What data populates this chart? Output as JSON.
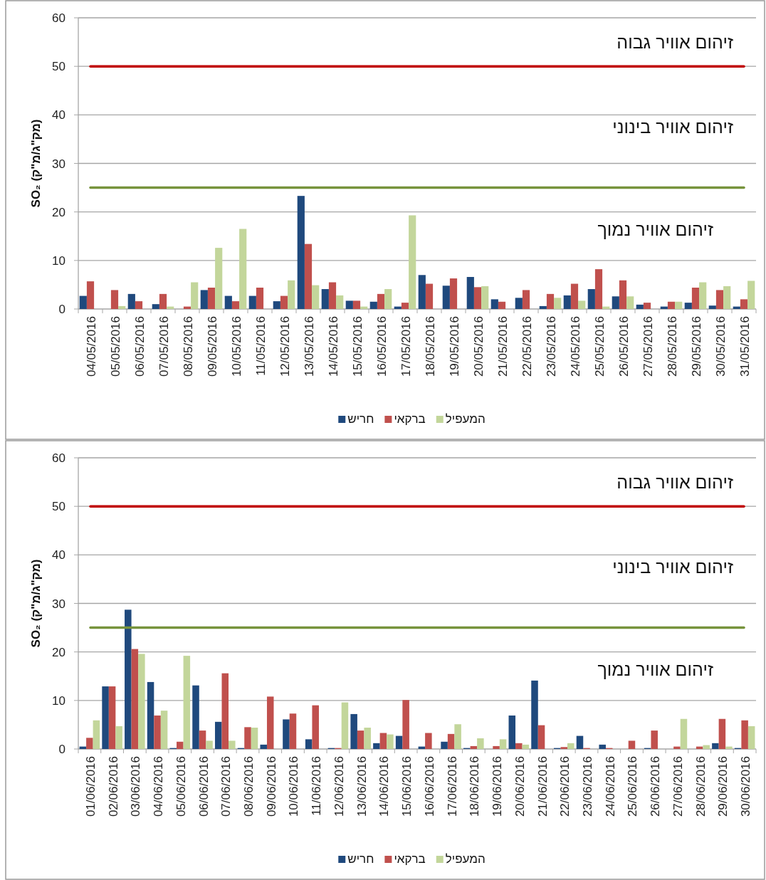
{
  "chart_data": [
    {
      "type": "bar",
      "ylabel": "SO₂ (מק\"ג/מ\"ק)",
      "categories": [
        "04/05/2016",
        "05/05/2016",
        "06/05/2016",
        "07/05/2016",
        "08/05/2016",
        "09/05/2016",
        "10/05/2016",
        "11/05/2016",
        "12/05/2016",
        "13/05/2016",
        "14/05/2016",
        "15/05/2016",
        "16/05/2016",
        "17/05/2016",
        "18/05/2016",
        "19/05/2016",
        "20/05/2016",
        "21/05/2016",
        "22/05/2016",
        "23/05/2016",
        "24/05/2016",
        "25/05/2016",
        "26/05/2016",
        "27/05/2016",
        "28/05/2016",
        "29/05/2016",
        "30/05/2016",
        "31/05/2016"
      ],
      "series": [
        {
          "name": "חריש",
          "color": "#1f497d",
          "values": [
            2.7,
            0,
            3.1,
            1.0,
            0,
            3.9,
            2.7,
            2.7,
            1.6,
            23.3,
            4.1,
            1.7,
            1.5,
            0.5,
            7.0,
            4.8,
            6.6,
            2.0,
            2.3,
            0.6,
            2.8,
            4.1,
            2.6,
            0.9,
            0.5,
            1.3,
            0.7,
            0.5
          ]
        },
        {
          "name": "ברקאי",
          "color": "#c0504d",
          "values": [
            5.7,
            3.9,
            1.6,
            3.1,
            0.5,
            4.4,
            1.6,
            4.4,
            2.7,
            13.4,
            5.5,
            1.7,
            3.1,
            1.3,
            5.2,
            6.3,
            4.5,
            1.5,
            3.9,
            3.1,
            5.2,
            8.2,
            5.9,
            1.3,
            1.5,
            4.4,
            3.9,
            2.0
          ]
        },
        {
          "name": "המעפיל",
          "color": "#c3d69b",
          "values": [
            0,
            0.6,
            0,
            0.5,
            5.5,
            12.6,
            16.5,
            0,
            5.9,
            4.9,
            2.8,
            0.5,
            4.1,
            19.3,
            0,
            0,
            4.7,
            0,
            0,
            2.3,
            1.7,
            0.5,
            2.6,
            null,
            1.5,
            5.5,
            4.7,
            5.8
          ]
        }
      ],
      "ylim": [
        0,
        60
      ],
      "yticks": [
        0,
        10,
        20,
        30,
        40,
        50,
        60
      ],
      "grid": "y",
      "legend": "bottom",
      "ref_lines": [
        {
          "axis": "y",
          "value": 50,
          "label": "זיהום אוויר גבוה",
          "color": "#c00000"
        },
        {
          "axis": "y",
          "value": 25,
          "label": "זיהום אוויר בינוני",
          "color": "#77933c"
        }
      ],
      "annotations": [
        "זיהום אוויר נמוך"
      ]
    },
    {
      "type": "bar",
      "ylabel": "SO₂ (מק\"ג/מ\"ק)",
      "categories": [
        "01/06/2016",
        "02/06/2016",
        "03/06/2016",
        "04/06/2016",
        "05/06/2016",
        "06/06/2016",
        "07/06/2016",
        "08/06/2016",
        "09/06/2016",
        "10/06/2016",
        "11/06/2016",
        "12/06/2016",
        "13/06/2016",
        "14/06/2016",
        "15/06/2016",
        "16/06/2016",
        "17/06/2016",
        "18/06/2016",
        "19/06/2016",
        "20/06/2016",
        "21/06/2016",
        "22/06/2016",
        "23/06/2016",
        "24/06/2016",
        "25/06/2016",
        "26/06/2016",
        "27/06/2016",
        "28/06/2016",
        "29/06/2016",
        "30/06/2016"
      ],
      "series": [
        {
          "name": "חריש",
          "color": "#1f497d",
          "values": [
            0.5,
            12.9,
            28.7,
            13.8,
            0.2,
            13.1,
            5.6,
            0.2,
            0.9,
            6.1,
            2.0,
            0.2,
            7.2,
            1.2,
            2.7,
            0.5,
            1.5,
            0.2,
            0,
            6.9,
            14.1,
            0.2,
            2.7,
            0.9,
            0,
            0.2,
            0,
            0,
            1.2,
            0.2
          ]
        },
        {
          "name": "ברקאי",
          "color": "#c0504d",
          "values": [
            2.3,
            12.9,
            20.6,
            6.9,
            1.5,
            3.8,
            15.6,
            4.5,
            10.8,
            7.3,
            9.0,
            0.2,
            3.8,
            3.3,
            10.1,
            3.3,
            3.1,
            0.6,
            0.6,
            1.2,
            4.9,
            0.4,
            0.2,
            0.2,
            1.7,
            3.8,
            0.5,
            0.5,
            6.2,
            5.9
          ]
        },
        {
          "name": "המעפיל",
          "color": "#c3d69b",
          "values": [
            5.9,
            4.7,
            19.6,
            7.9,
            19.2,
            1.7,
            1.7,
            4.4,
            0,
            0,
            0,
            9.6,
            4.4,
            3.0,
            null,
            0,
            5.1,
            2.2,
            2.0,
            0.9,
            0,
            1.2,
            0,
            0,
            0,
            0,
            6.2,
            0.8,
            0.5,
            4.7
          ]
        }
      ],
      "ylim": [
        0,
        60
      ],
      "yticks": [
        0,
        10,
        20,
        30,
        40,
        50,
        60
      ],
      "grid": "y",
      "legend": "bottom",
      "ref_lines": [
        {
          "axis": "y",
          "value": 50,
          "label": "זיהום אוויר גבוה",
          "color": "#c00000"
        },
        {
          "axis": "y",
          "value": 25,
          "label": "זיהום אוויר בינוני",
          "color": "#77933c"
        }
      ],
      "annotations": [
        "זיהום אוויר נמוך"
      ]
    }
  ]
}
